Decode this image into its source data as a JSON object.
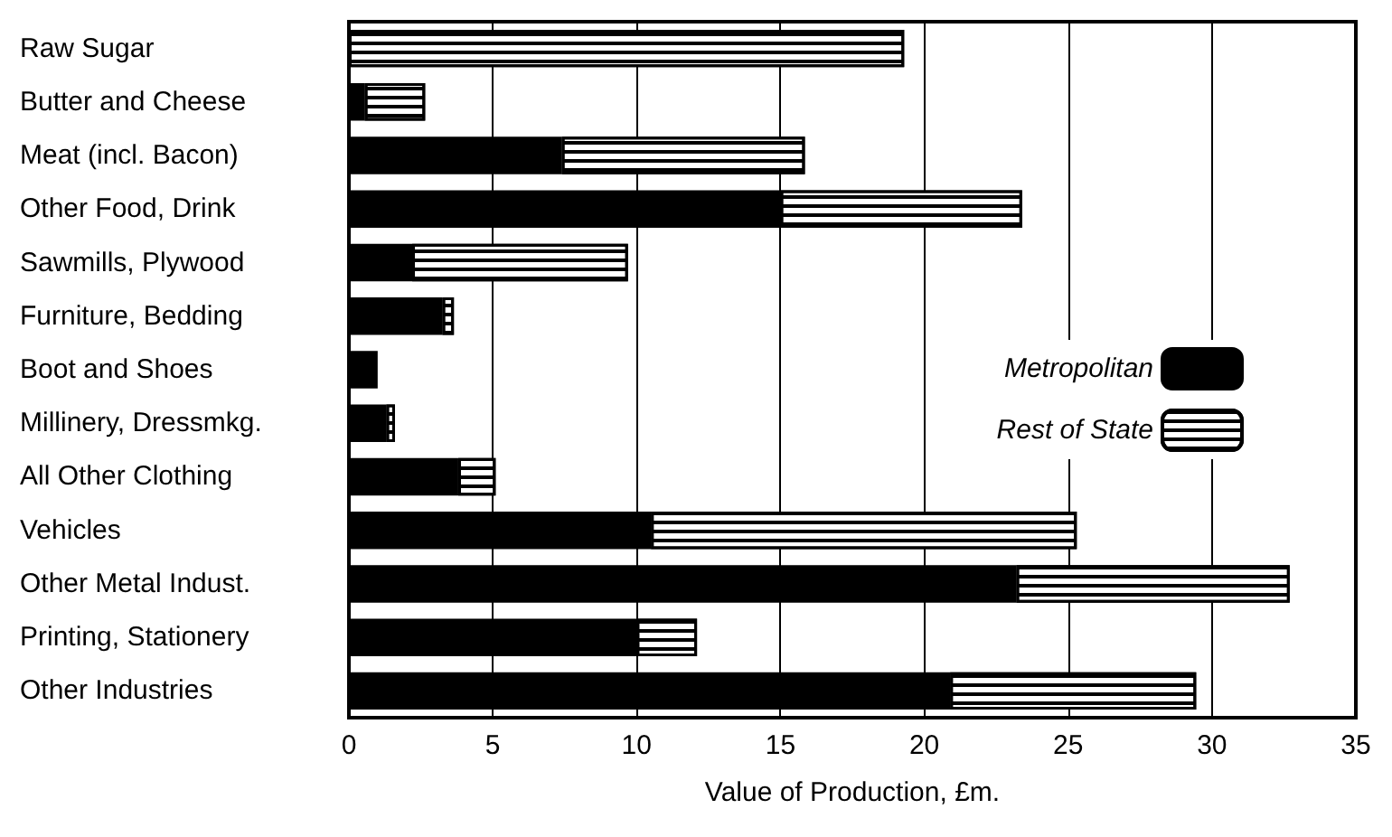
{
  "chart_data": {
    "type": "bar",
    "orientation": "horizontal",
    "stacked": true,
    "categories": [
      "Raw Sugar",
      "Butter and Cheese",
      "Meat (incl. Bacon)",
      "Other Food, Drink",
      "Sawmills, Plywood",
      "Furniture, Bedding",
      "Boot and Shoes",
      "Millinery, Dressmkg.",
      "All Other Clothing",
      "Vehicles",
      "Other Metal Indust.",
      "Printing, Stationery",
      "Other Industries"
    ],
    "series": [
      {
        "name": "Metropolitan",
        "color": "#000000",
        "values": [
          0,
          0.55,
          7.4,
          15,
          2.2,
          3.25,
          1.0,
          1.3,
          3.8,
          10.5,
          23.2,
          10,
          20.9
        ]
      },
      {
        "name": "Rest of State",
        "color": "#ffffff",
        "values": [
          19.3,
          2.1,
          8.45,
          8.4,
          7.5,
          0.4,
          null,
          0.3,
          1.3,
          14.8,
          9.5,
          2.1,
          8.55
        ]
      }
    ],
    "xlabel": "Value of Production, £m.",
    "xlim": [
      0,
      35
    ],
    "xticks": [
      0,
      5,
      10,
      15,
      20,
      25,
      30,
      35
    ],
    "grid": "x",
    "legend": "right"
  }
}
